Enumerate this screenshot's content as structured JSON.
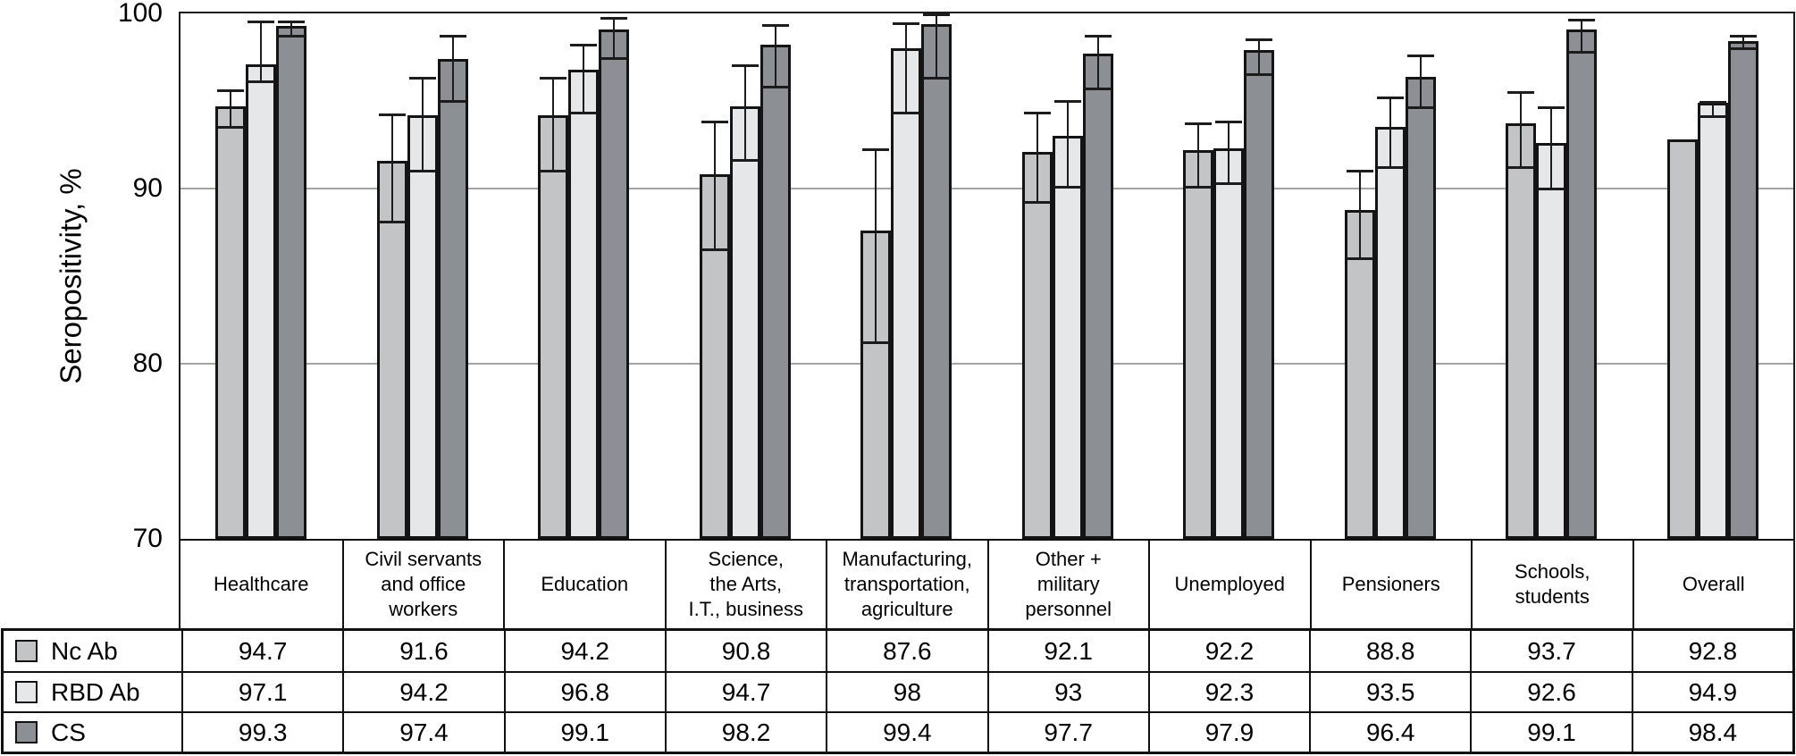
{
  "chart_data": {
    "type": "bar",
    "title": "",
    "ylabel": "Seropositivity, %",
    "ylim": [
      70,
      100
    ],
    "yticks": [
      100,
      90,
      80,
      70
    ],
    "grid_values": [
      90,
      80
    ],
    "grid": "horizontal",
    "legend_position": "table-left-column",
    "categories": [
      "Healthcare",
      "Civil servants\nand office\nworkers",
      "Education",
      "Science,\nthe Arts,\nI.T., business",
      "Manufacturing,\ntransportation,\nagriculture",
      "Other +\nmilitary\npersonnel",
      "Unemployed",
      "Pensioners",
      "Schools,\nstudents",
      "Overall"
    ],
    "series": [
      {
        "name": "Nc Ab",
        "color": "#c2c4c6",
        "values": [
          94.7,
          91.6,
          94.2,
          90.8,
          87.6,
          92.1,
          92.2,
          88.8,
          93.7,
          92.8
        ],
        "ci": [
          [
            93.5,
            95.6
          ],
          [
            88.1,
            94.2
          ],
          [
            91.0,
            96.3
          ],
          [
            86.5,
            93.8
          ],
          [
            81.2,
            92.2
          ],
          [
            89.2,
            94.3
          ],
          [
            90.1,
            93.7
          ],
          [
            86.0,
            91.0
          ],
          [
            91.2,
            95.5
          ],
          null
        ]
      },
      {
        "name": "RBD Ab",
        "color": "#e6e7e9",
        "values": [
          97.1,
          94.2,
          96.8,
          94.7,
          98,
          93,
          92.3,
          93.5,
          92.6,
          94.9
        ],
        "ci": [
          [
            96.1,
            99.5
          ],
          [
            91.0,
            96.3
          ],
          [
            94.3,
            98.2
          ],
          [
            91.6,
            97.0
          ],
          [
            94.3,
            99.4
          ],
          [
            90.1,
            95.0
          ],
          [
            90.3,
            93.8
          ],
          [
            91.2,
            95.2
          ],
          [
            90.0,
            94.6
          ],
          [
            94.1,
            94.9
          ]
        ]
      },
      {
        "name": "CS",
        "color": "#8c8f93",
        "values": [
          99.3,
          97.4,
          99.1,
          98.2,
          99.4,
          97.7,
          97.9,
          96.4,
          99.1,
          98.4
        ],
        "ci": [
          [
            98.7,
            99.5
          ],
          [
            95.0,
            98.7
          ],
          [
            97.4,
            99.7
          ],
          [
            95.8,
            99.3
          ],
          [
            96.3,
            99.9
          ],
          [
            95.7,
            98.7
          ],
          [
            96.5,
            98.5
          ],
          [
            94.6,
            97.6
          ],
          [
            97.8,
            99.6
          ],
          [
            98.0,
            98.7
          ]
        ]
      }
    ]
  },
  "colors": {
    "frame": "#1a1a1a",
    "gridline": "#a3a3a3",
    "bar_outline": "#141414",
    "background": "#ffffff"
  }
}
